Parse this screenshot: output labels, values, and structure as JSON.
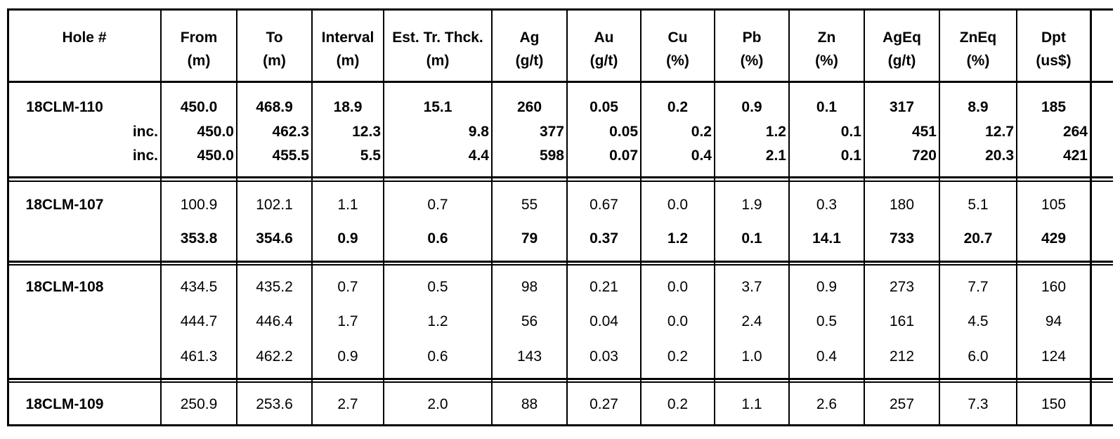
{
  "table": {
    "headers": [
      {
        "line1": "Hole #",
        "line2": ""
      },
      {
        "line1": "From",
        "line2": "(m)"
      },
      {
        "line1": "To",
        "line2": "(m)"
      },
      {
        "line1": "Interval",
        "line2": "(m)"
      },
      {
        "line1": "Est. Tr. Thck.",
        "line2": "(m)"
      },
      {
        "line1": "Ag",
        "line2": "(g/t)"
      },
      {
        "line1": "Au",
        "line2": "(g/t)"
      },
      {
        "line1": "Cu",
        "line2": "(%)"
      },
      {
        "line1": "Pb",
        "line2": "(%)"
      },
      {
        "line1": "Zn",
        "line2": "(%)"
      },
      {
        "line1": "AgEq",
        "line2": "(g/t)"
      },
      {
        "line1": "ZnEq",
        "line2": "(%)"
      },
      {
        "line1": "Dpt",
        "line2": "(us$)"
      }
    ],
    "groups": [
      {
        "hole": "18CLM-110",
        "rows": [
          {
            "label": "",
            "bold": true,
            "align": "center",
            "values": [
              "450.0",
              "468.9",
              "18.9",
              "15.1",
              "260",
              "0.05",
              "0.2",
              "0.9",
              "0.1",
              "317",
              "8.9",
              "185"
            ]
          },
          {
            "label": "inc.",
            "bold": true,
            "align": "right",
            "values": [
              "450.0",
              "462.3",
              "12.3",
              "9.8",
              "377",
              "0.05",
              "0.2",
              "1.2",
              "0.1",
              "451",
              "12.7",
              "264"
            ]
          },
          {
            "label": "inc.",
            "bold": true,
            "align": "right",
            "values": [
              "450.0",
              "455.5",
              "5.5",
              "4.4",
              "598",
              "0.07",
              "0.4",
              "2.1",
              "0.1",
              "720",
              "20.3",
              "421"
            ]
          }
        ]
      },
      {
        "hole": "18CLM-107",
        "rows": [
          {
            "label": "",
            "bold": false,
            "align": "center",
            "values": [
              "100.9",
              "102.1",
              "1.1",
              "0.7",
              "55",
              "0.67",
              "0.0",
              "1.9",
              "0.3",
              "180",
              "5.1",
              "105"
            ]
          },
          {
            "label": "",
            "bold": true,
            "align": "center",
            "values": [
              "353.8",
              "354.6",
              "0.9",
              "0.6",
              "79",
              "0.37",
              "1.2",
              "0.1",
              "14.1",
              "733",
              "20.7",
              "429"
            ]
          }
        ]
      },
      {
        "hole": "18CLM-108",
        "rows": [
          {
            "label": "",
            "bold": false,
            "align": "center",
            "values": [
              "434.5",
              "435.2",
              "0.7",
              "0.5",
              "98",
              "0.21",
              "0.0",
              "3.7",
              "0.9",
              "273",
              "7.7",
              "160"
            ]
          },
          {
            "label": "",
            "bold": false,
            "align": "center",
            "values": [
              "444.7",
              "446.4",
              "1.7",
              "1.2",
              "56",
              "0.04",
              "0.0",
              "2.4",
              "0.5",
              "161",
              "4.5",
              "94"
            ]
          },
          {
            "label": "",
            "bold": false,
            "align": "center",
            "values": [
              "461.3",
              "462.2",
              "0.9",
              "0.6",
              "143",
              "0.03",
              "0.2",
              "1.0",
              "0.4",
              "212",
              "6.0",
              "124"
            ]
          }
        ]
      },
      {
        "hole": "18CLM-109",
        "rows": [
          {
            "label": "",
            "bold": false,
            "align": "center",
            "values": [
              "250.9",
              "253.6",
              "2.7",
              "2.0",
              "88",
              "0.27",
              "0.2",
              "1.1",
              "2.6",
              "257",
              "7.3",
              "150"
            ]
          }
        ]
      }
    ]
  }
}
